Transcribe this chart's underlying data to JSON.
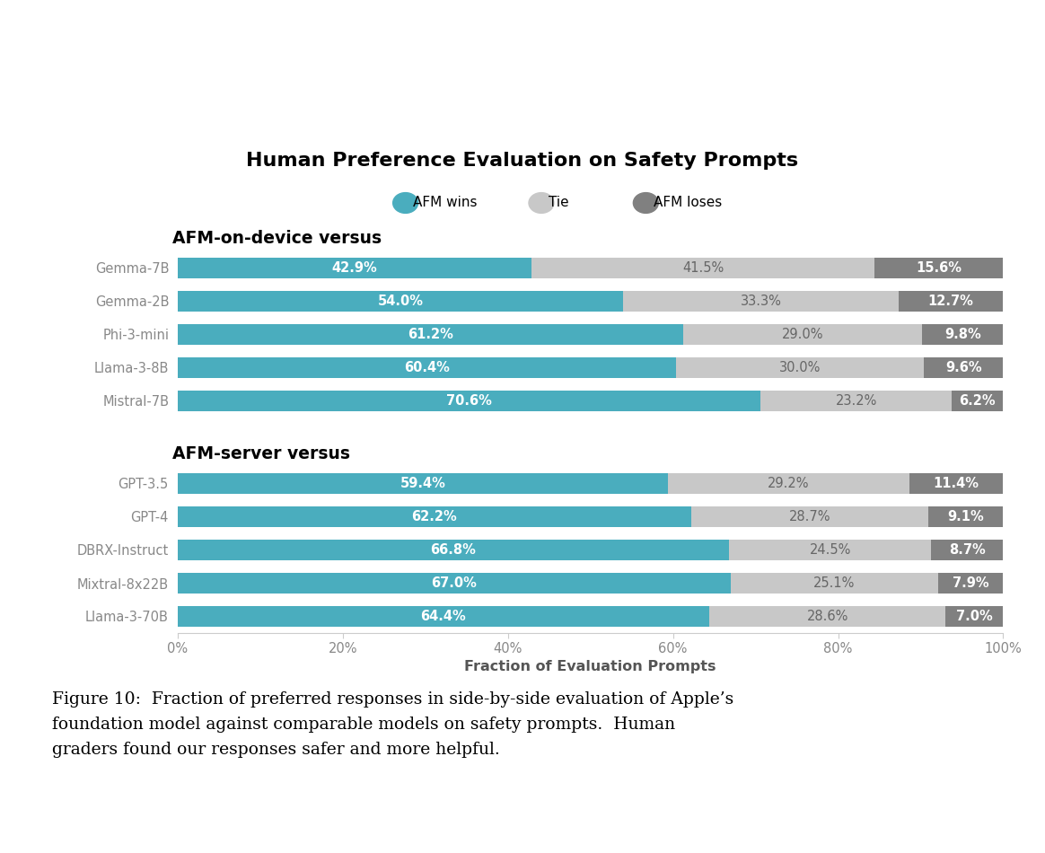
{
  "title": "Human Preference Evaluation on Safety Prompts",
  "legend_labels": [
    "AFM wins",
    "Tie",
    "AFM loses"
  ],
  "colors": {
    "afm_wins": "#4AADBE",
    "tie": "#C8C8C8",
    "afm_loses": "#808080"
  },
  "section1_title": "AFM-on-device versus",
  "section1_models": [
    "Gemma-7B",
    "Gemma-2B",
    "Phi-3-mini",
    "Llama-3-8B",
    "Mistral-7B"
  ],
  "section1_wins": [
    42.9,
    54.0,
    61.2,
    60.4,
    70.6
  ],
  "section1_tie": [
    41.5,
    33.3,
    29.0,
    30.0,
    23.2
  ],
  "section1_loses": [
    15.6,
    12.7,
    9.8,
    9.6,
    6.2
  ],
  "section2_title": "AFM-server versus",
  "section2_models": [
    "GPT-3.5",
    "GPT-4",
    "DBRX-Instruct",
    "Mixtral-8x22B",
    "Llama-3-70B"
  ],
  "section2_wins": [
    59.4,
    62.2,
    66.8,
    67.0,
    64.4
  ],
  "section2_tie": [
    29.2,
    28.7,
    24.5,
    25.1,
    28.6
  ],
  "section2_loses": [
    11.4,
    9.1,
    8.7,
    7.9,
    7.0
  ],
  "xlabel": "Fraction of Evaluation Prompts",
  "caption": "Figure 10:  Fraction of preferred responses in side-by-side evaluation of Apple’s\nfoundation model against comparable models on safety prompts.  Human\ngraders found our responses safer and more helpful.",
  "bar_height": 0.6,
  "tick_labels": [
    "0%",
    "20%",
    "40%",
    "60%",
    "80%",
    "100%"
  ],
  "tick_values": [
    0,
    20,
    40,
    60,
    80,
    100
  ]
}
